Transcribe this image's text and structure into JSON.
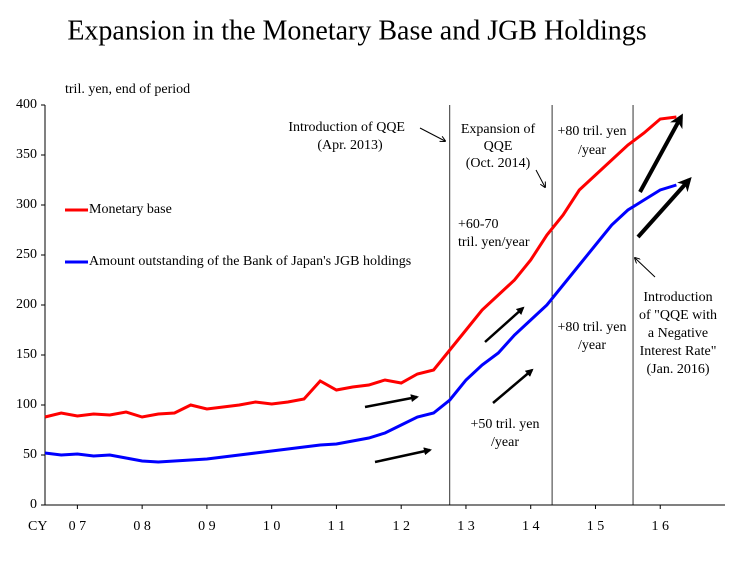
{
  "chart_data": {
    "type": "line",
    "title": "Expansion in the Monetary Base and JGB Holdings",
    "y_axis_label": "tril. yen, end of period",
    "x_axis_prefix": "CY",
    "xlim": [
      2007,
      2017.5
    ],
    "ylim": [
      0,
      400
    ],
    "yticks": [
      0,
      50,
      100,
      150,
      200,
      250,
      300,
      350,
      400
    ],
    "xticks": [
      {
        "value": 2007.5,
        "label": "0 7"
      },
      {
        "value": 2008.5,
        "label": "0 8"
      },
      {
        "value": 2009.5,
        "label": "0 9"
      },
      {
        "value": 2010.5,
        "label": "1 0"
      },
      {
        "value": 2011.5,
        "label": "1 1"
      },
      {
        "value": 2012.5,
        "label": "1 2"
      },
      {
        "value": 2013.5,
        "label": "1 3"
      },
      {
        "value": 2014.5,
        "label": "1 4"
      },
      {
        "value": 2015.5,
        "label": "1 5"
      },
      {
        "value": 2016.5,
        "label": "1 6"
      }
    ],
    "event_lines": [
      2013.25,
      2014.83,
      2016.08
    ],
    "x": [
      2007,
      2007.25,
      2007.5,
      2007.75,
      2008,
      2008.25,
      2008.5,
      2008.75,
      2009,
      2009.25,
      2009.5,
      2009.75,
      2010,
      2010.25,
      2010.5,
      2010.75,
      2011,
      2011.25,
      2011.5,
      2011.75,
      2012,
      2012.25,
      2012.5,
      2012.75,
      2013,
      2013.25,
      2013.5,
      2013.75,
      2014,
      2014.25,
      2014.5,
      2014.75,
      2015,
      2015.25,
      2015.5,
      2015.75,
      2016,
      2016.25,
      2016.5,
      2016.75
    ],
    "series": [
      {
        "name": "Monetary base",
        "color": "#ff0000",
        "values": [
          88,
          92,
          89,
          91,
          90,
          93,
          88,
          91,
          92,
          100,
          96,
          98,
          100,
          103,
          101,
          103,
          106,
          124,
          115,
          118,
          120,
          125,
          122,
          131,
          135,
          155,
          175,
          195,
          210,
          225,
          245,
          270,
          290,
          315,
          330,
          345,
          360,
          372,
          386,
          388
        ]
      },
      {
        "name": "Amount outstanding of the Bank of Japan's JGB holdings",
        "color": "#0000ff",
        "values": [
          52,
          50,
          51,
          49,
          50,
          47,
          44,
          43,
          44,
          45,
          46,
          48,
          50,
          52,
          54,
          56,
          58,
          60,
          61,
          64,
          67,
          72,
          80,
          88,
          92,
          105,
          125,
          140,
          152,
          170,
          185,
          200,
          220,
          240,
          260,
          280,
          295,
          305,
          315,
          320
        ]
      }
    ],
    "annotations": [
      [
        "Introduction of QQE",
        "(Apr. 2013)"
      ],
      [
        "Expansion of",
        "QQE",
        "(Oct. 2014)"
      ],
      [
        "+80 tril. yen",
        "/year"
      ],
      [
        "+60-70",
        "tril. yen/year"
      ],
      [
        "+80 tril. yen",
        "/year"
      ],
      [
        "+50 tril. yen",
        "/year"
      ],
      [
        "Introduction",
        "of \"QQE with",
        "a Negative",
        "Interest Rate\"",
        "(Jan. 2016)"
      ]
    ]
  }
}
